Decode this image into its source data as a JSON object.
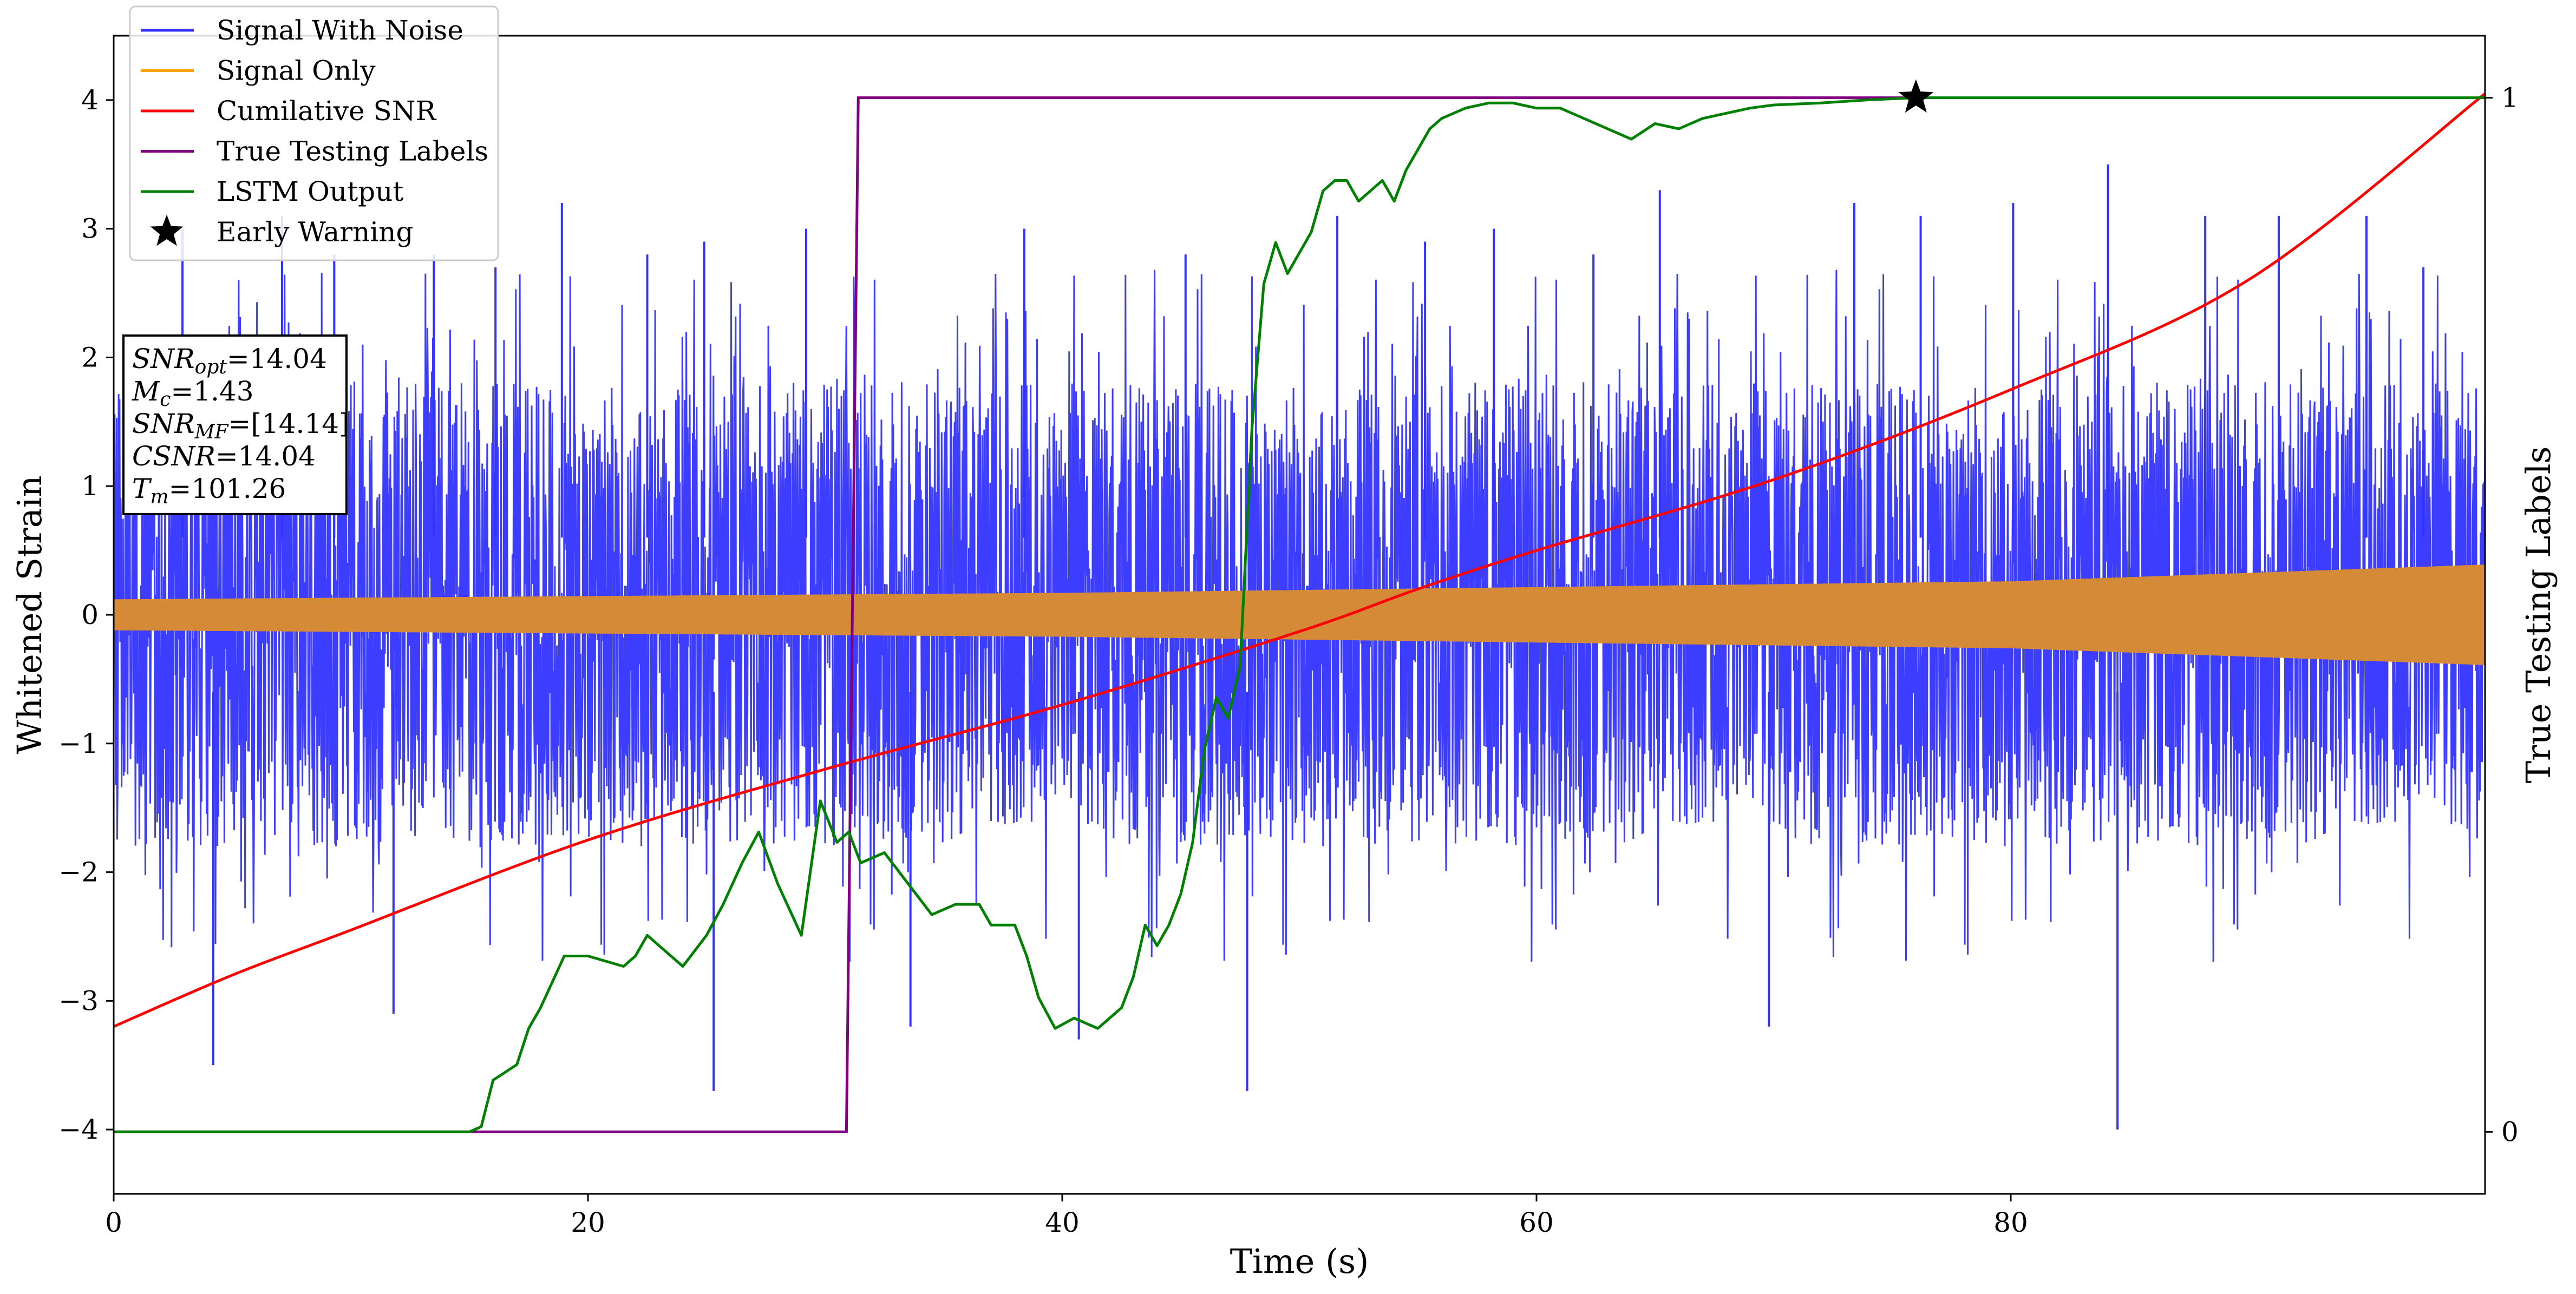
{
  "chart_data": {
    "type": "line",
    "xlabel": "Time (s)",
    "ylabel": "Whitened Strain",
    "y2label": "True Testing Labels",
    "xlim": [
      0,
      100
    ],
    "ylim": [
      -4.5,
      4.5
    ],
    "y2lim": [
      -0.06,
      1.06
    ],
    "grid": false,
    "legend_position": "top-left",
    "x_ticks": [
      {
        "value": 0,
        "label": "0"
      },
      {
        "value": 20,
        "label": "20"
      },
      {
        "value": 40,
        "label": "40"
      },
      {
        "value": 60,
        "label": "60"
      },
      {
        "value": 80,
        "label": "80"
      }
    ],
    "y_ticks": [
      {
        "value": -4,
        "label": "−4"
      },
      {
        "value": -3,
        "label": "−3"
      },
      {
        "value": -2,
        "label": "−2"
      },
      {
        "value": -1,
        "label": "−1"
      },
      {
        "value": 0,
        "label": "0"
      },
      {
        "value": 1,
        "label": "1"
      },
      {
        "value": 2,
        "label": "2"
      },
      {
        "value": 3,
        "label": "3"
      },
      {
        "value": 4,
        "label": "4"
      }
    ],
    "y2_ticks": [
      {
        "value": 0,
        "label": "0"
      },
      {
        "value": 1,
        "label": "1"
      }
    ],
    "series": [
      {
        "name": "Signal With Noise",
        "color": "#3333ff",
        "axis": "left",
        "style": "noise-band",
        "typical_range": [
          -1.6,
          1.8
        ],
        "peaks": [
          {
            "x": 2.9,
            "y": 3.0
          },
          {
            "x": 4.2,
            "y": -3.5
          },
          {
            "x": 7.1,
            "y": 3.1
          },
          {
            "x": 9.3,
            "y": 2.8
          },
          {
            "x": 11.8,
            "y": -3.1
          },
          {
            "x": 13.5,
            "y": 2.8
          },
          {
            "x": 16.1,
            "y": 2.7
          },
          {
            "x": 18.9,
            "y": 3.2
          },
          {
            "x": 22.5,
            "y": 2.8
          },
          {
            "x": 24.9,
            "y": 2.9
          },
          {
            "x": 25.3,
            "y": -3.7
          },
          {
            "x": 29.2,
            "y": 3.0
          },
          {
            "x": 33.6,
            "y": -3.2
          },
          {
            "x": 38.4,
            "y": 3.0
          },
          {
            "x": 40.7,
            "y": -3.3
          },
          {
            "x": 45.2,
            "y": 2.8
          },
          {
            "x": 47.8,
            "y": -3.7
          },
          {
            "x": 51.6,
            "y": 3.1
          },
          {
            "x": 55.3,
            "y": 2.9
          },
          {
            "x": 58.2,
            "y": 3.0
          },
          {
            "x": 62.4,
            "y": 2.8
          },
          {
            "x": 65.2,
            "y": 3.3
          },
          {
            "x": 69.8,
            "y": -3.2
          },
          {
            "x": 73.4,
            "y": 3.2
          },
          {
            "x": 76.2,
            "y": 3.1
          },
          {
            "x": 80.1,
            "y": 3.2
          },
          {
            "x": 84.1,
            "y": 3.5
          },
          {
            "x": 84.5,
            "y": -4.0
          },
          {
            "x": 88.2,
            "y": 3.1
          },
          {
            "x": 91.3,
            "y": 3.1
          },
          {
            "x": 95.0,
            "y": 3.1
          },
          {
            "x": 97.4,
            "y": 2.7
          }
        ]
      },
      {
        "name": "Signal Only",
        "color": "#ffa500",
        "axis": "left",
        "style": "chirp-envelope",
        "envelope": [
          {
            "x": 0,
            "y": 0.12
          },
          {
            "x": 40,
            "y": 0.17
          },
          {
            "x": 80,
            "y": 0.26
          },
          {
            "x": 100,
            "y": 0.39
          }
        ]
      },
      {
        "name": "Cumilative SNR",
        "color": "#ff0000",
        "axis": "left",
        "x": [
          0,
          5,
          10,
          20,
          30,
          40,
          50,
          55,
          60,
          70,
          80,
          90,
          100
        ],
        "y": [
          -3.2,
          -2.8,
          -2.45,
          -1.75,
          -1.2,
          -0.7,
          -0.13,
          0.2,
          0.5,
          1.05,
          1.75,
          2.6,
          4.05
        ]
      },
      {
        "name": "True Testing Labels",
        "color": "#800080",
        "axis": "right",
        "x": [
          0,
          30.9,
          31.4,
          76.0
        ],
        "y": [
          0,
          0,
          1,
          1
        ]
      },
      {
        "name": "LSTM Output",
        "color": "#008000",
        "axis": "right",
        "x": [
          0,
          15.0,
          15.5,
          16.0,
          17.0,
          17.5,
          18.0,
          19.0,
          20.0,
          21.5,
          22.0,
          22.5,
          23.0,
          24.0,
          25.0,
          25.7,
          26.5,
          27.2,
          28.0,
          29.0,
          29.8,
          30.5,
          31.0,
          31.5,
          32.5,
          33.5,
          34.5,
          35.5,
          36.5,
          37.0,
          38.0,
          38.5,
          39.0,
          39.7,
          40.5,
          41.5,
          42.5,
          43.0,
          43.5,
          44.0,
          44.5,
          45.0,
          45.5,
          46.0,
          46.5,
          47.0,
          47.5,
          48.0,
          48.5,
          49.0,
          49.5,
          50.0,
          50.5,
          51.0,
          51.5,
          52.0,
          52.5,
          53.0,
          53.5,
          54.0,
          54.5,
          55.0,
          55.5,
          56.0,
          57.0,
          58.0,
          59.0,
          60.0,
          61.0,
          62.0,
          63.0,
          64.0,
          65.0,
          66.0,
          67.0,
          68.0,
          69.0,
          70.0,
          72.0,
          74.0,
          76.0,
          80.0,
          90.0,
          100.0
        ],
        "y": [
          0,
          0,
          0.005,
          0.05,
          0.065,
          0.1,
          0.12,
          0.17,
          0.17,
          0.16,
          0.17,
          0.19,
          0.18,
          0.16,
          0.19,
          0.22,
          0.26,
          0.29,
          0.24,
          0.19,
          0.32,
          0.28,
          0.29,
          0.26,
          0.27,
          0.24,
          0.21,
          0.22,
          0.22,
          0.2,
          0.2,
          0.17,
          0.13,
          0.1,
          0.11,
          0.1,
          0.12,
          0.15,
          0.2,
          0.18,
          0.2,
          0.23,
          0.28,
          0.37,
          0.42,
          0.4,
          0.45,
          0.68,
          0.82,
          0.86,
          0.83,
          0.85,
          0.87,
          0.91,
          0.92,
          0.92,
          0.9,
          0.91,
          0.92,
          0.9,
          0.93,
          0.95,
          0.97,
          0.98,
          0.99,
          0.995,
          0.995,
          0.99,
          0.99,
          0.98,
          0.97,
          0.96,
          0.975,
          0.97,
          0.98,
          0.985,
          0.99,
          0.993,
          0.995,
          0.998,
          1.0,
          1.0,
          1.0,
          1.0
        ]
      },
      {
        "name": "Early Warning",
        "color": "#000000",
        "axis": "right",
        "marker": "star",
        "x": [
          76.0
        ],
        "y": [
          1.0
        ]
      }
    ],
    "annotation": {
      "position": "upper-left",
      "lines": [
        {
          "sym": "SNR",
          "sub": "opt",
          "value": "=14.04"
        },
        {
          "sym": "M",
          "sub": "c",
          "value": "=1.43"
        },
        {
          "sym": "SNR",
          "sub": "MF",
          "value": "=[14.14]"
        },
        {
          "sym": "CSNR",
          "sub": "",
          "value": "=14.04"
        },
        {
          "sym": "T",
          "sub": "m",
          "value": "=101.26"
        }
      ]
    }
  }
}
